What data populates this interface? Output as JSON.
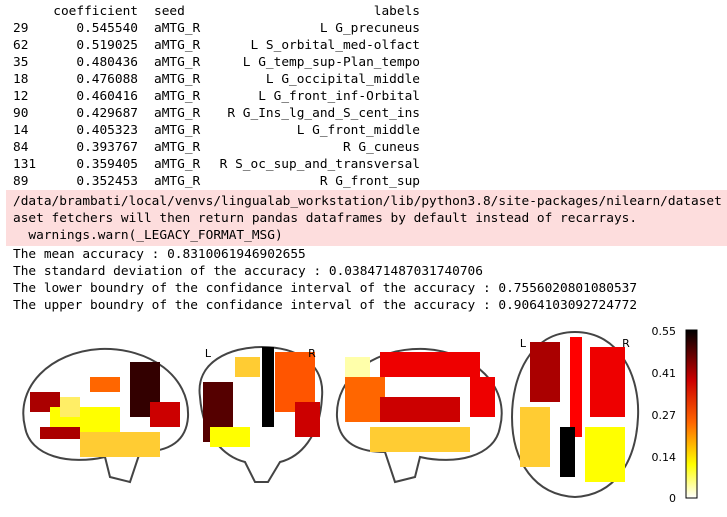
{
  "table": {
    "header": [
      "coefficient",
      "seed",
      "labels"
    ],
    "rows": [
      [
        "29",
        "0.545540",
        "aMTG_R",
        "L G_precuneus"
      ],
      [
        "62",
        "0.519025",
        "aMTG_R",
        "L S_orbital_med-olfact"
      ],
      [
        "35",
        "0.480436",
        "aMTG_R",
        "L G_temp_sup-Plan_tempo"
      ],
      [
        "18",
        "0.476088",
        "aMTG_R",
        "L G_occipital_middle"
      ],
      [
        "12",
        "0.460416",
        "aMTG_R",
        "L G_front_inf-Orbital"
      ],
      [
        "90",
        "0.429687",
        "aMTG_R",
        "R G_Ins_lg_and_S_cent_ins"
      ],
      [
        "14",
        "0.405323",
        "aMTG_R",
        "L G_front_middle"
      ],
      [
        "84",
        "0.393767",
        "aMTG_R",
        "R G_cuneus"
      ],
      [
        "131",
        "0.359405",
        "aMTG_R",
        "R S_oc_sup_and_transversal"
      ],
      [
        "89",
        "0.352453",
        "aMTG_R",
        "R G_front_sup"
      ]
    ]
  },
  "warning": [
    "/data/brambati/local/venvs/lingualab_workstation/lib/python3.8/site-packages/nilearn/dataset",
    "aset fetchers will then return pandas dataframes by default instead of recarrays.",
    "  warnings.warn(_LEGACY_FORMAT_MSG)"
  ],
  "output": [
    "The mean accuracy : 0.8310061946902655",
    "The standard deviation of the accuracy : 0.038471487031740706",
    "The lower boundry of the confidance interval of the accuracy : 0.7556020801080537",
    "The upper boundry of the confidance interval of the accuracy : 0.9064103092724772"
  ],
  "brain": {
    "coronal_left": "L",
    "coronal_right": "R",
    "axial_left": "L",
    "axial_right": "R",
    "colorbar_ticks": [
      "0.55",
      "0.41",
      "0.27",
      "0.14",
      "0"
    ]
  }
}
